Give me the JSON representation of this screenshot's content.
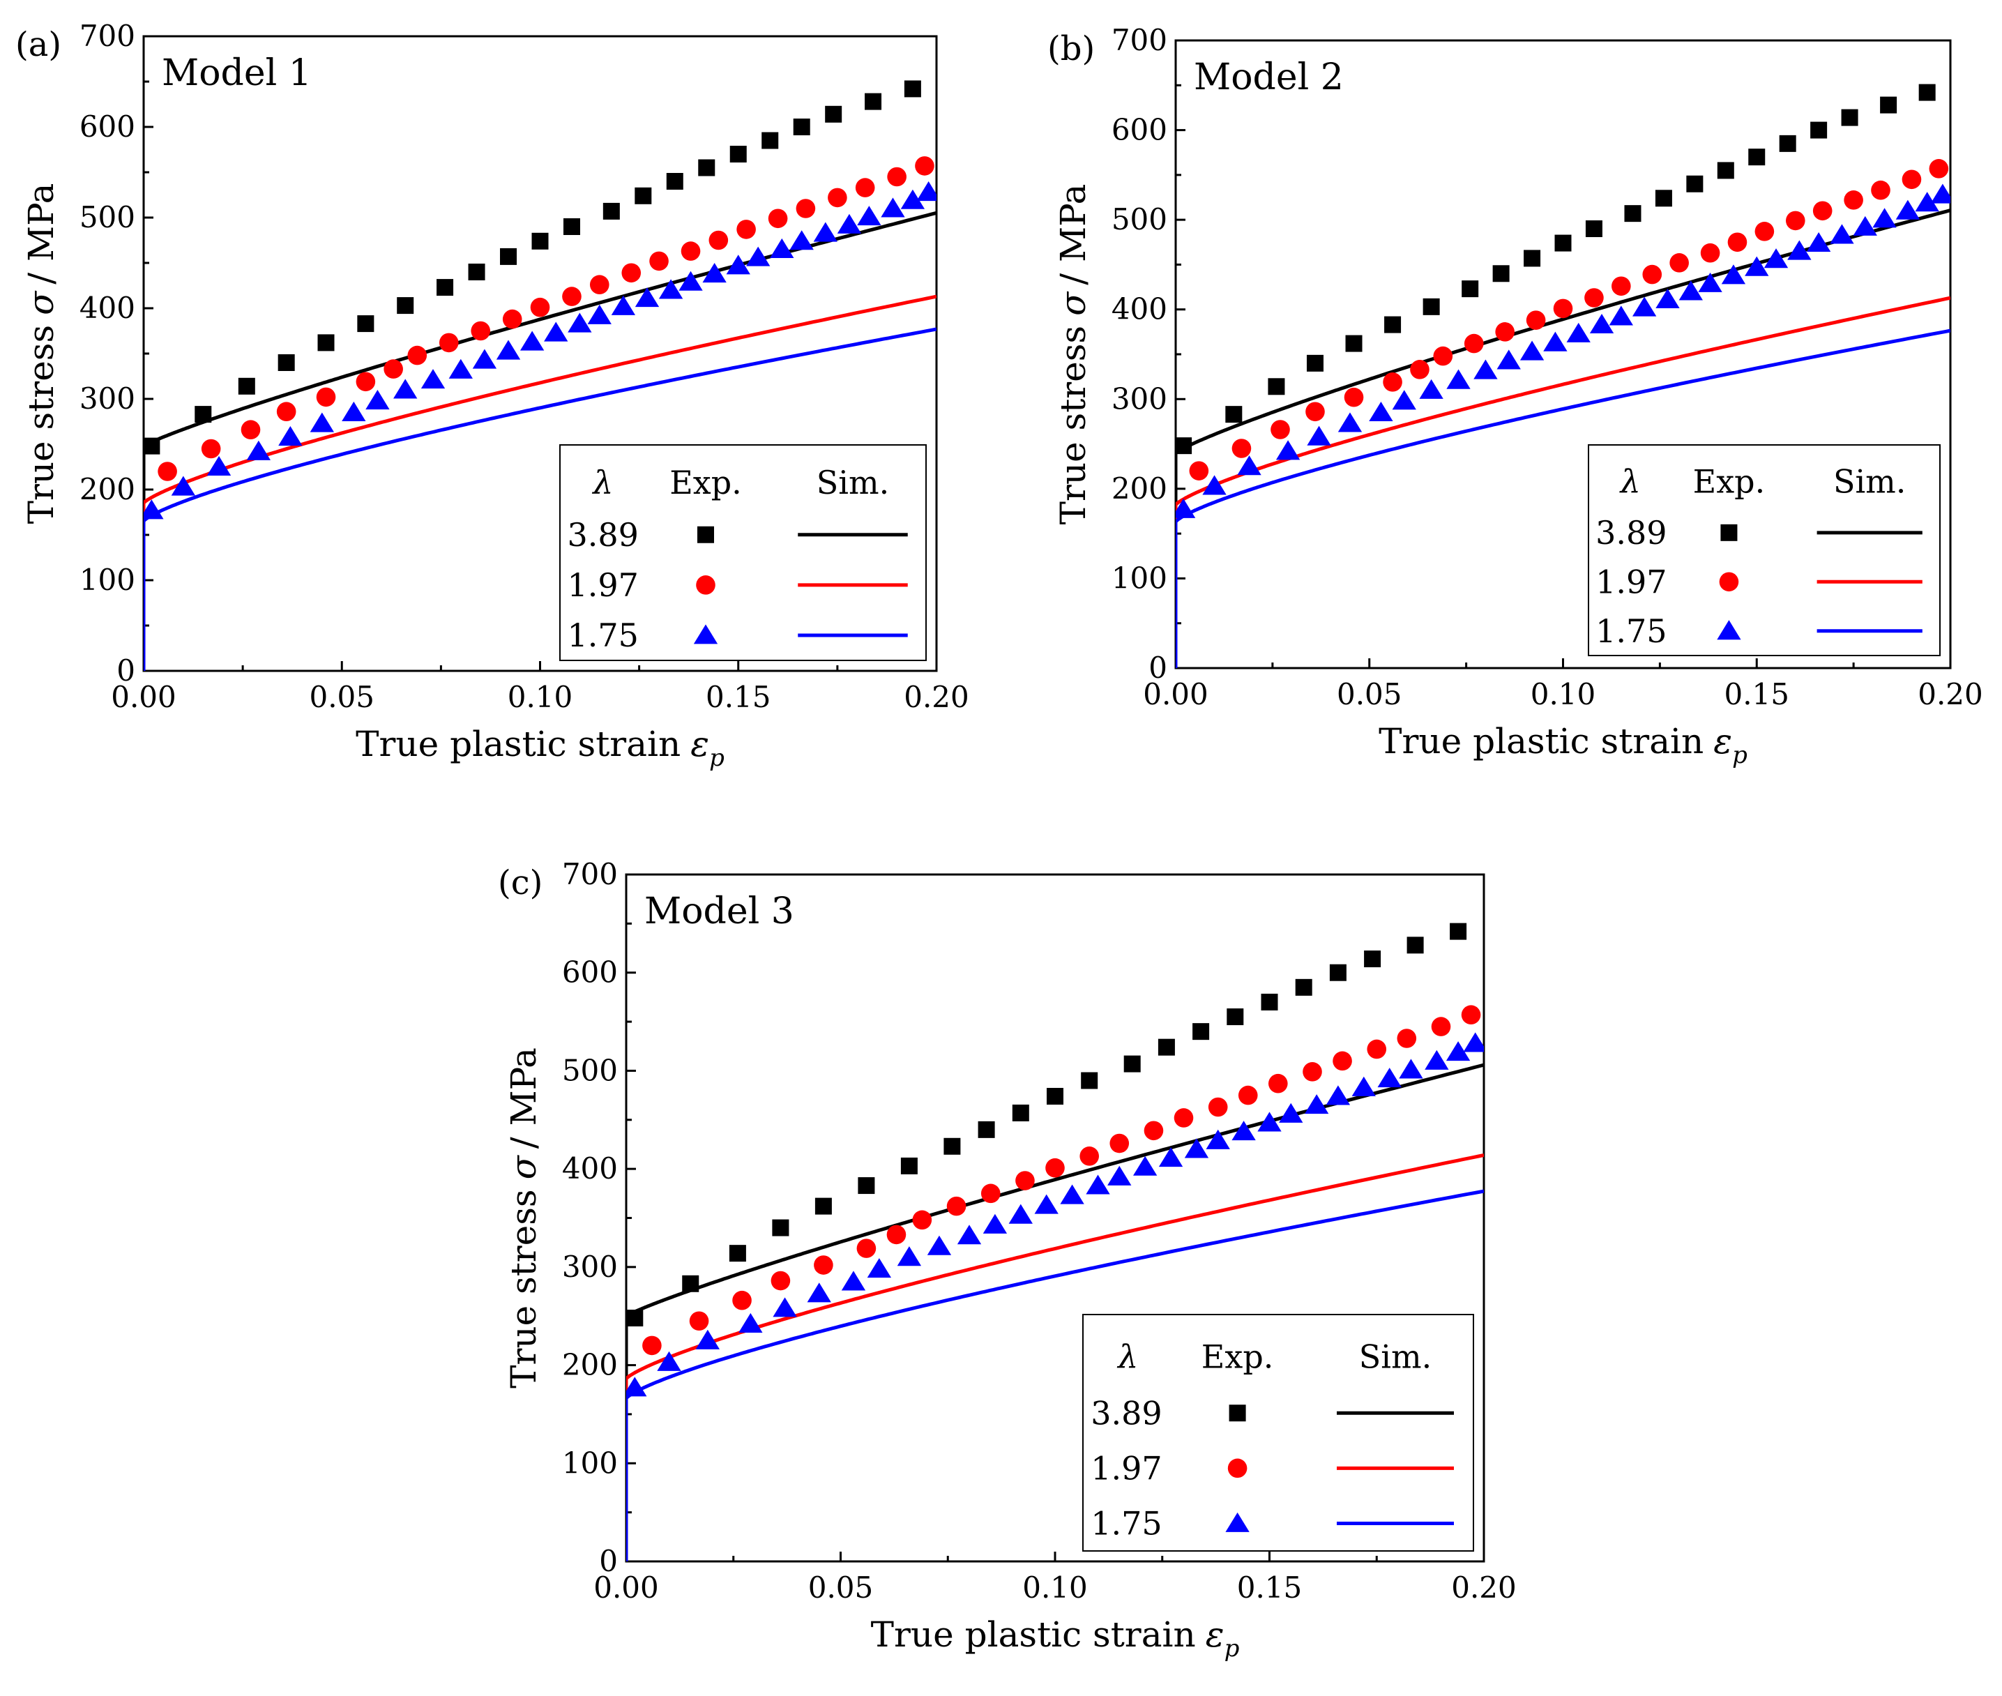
{
  "chart_data": [
    {
      "type": "line",
      "panel_label": "(a)",
      "title": "Model 1",
      "xlabel": "True plastic strain",
      "xlabel_symbol": "ε",
      "xlabel_subscript": "p",
      "ylabel": "True stress",
      "ylabel_symbol": "σ",
      "ylabel_unit": "/ MPa",
      "xlim": [
        0,
        0.2
      ],
      "ylim": [
        0,
        700
      ],
      "xticks": [
        "0.00",
        "0.05",
        "0.10",
        "0.15",
        "0.20"
      ],
      "yticks": [
        "0",
        "100",
        "200",
        "300",
        "400",
        "500",
        "600",
        "700"
      ],
      "legend": {
        "header_lambda": "λ",
        "header_exp": "Exp.",
        "header_sim": "Sim.",
        "position": "bottom-right"
      },
      "series": [
        {
          "name": "3.89",
          "color": "#000000",
          "marker": "square",
          "sim": {
            "s0": 248,
            "a": 1060,
            "b": 0.88
          },
          "exp_x": [
            0.002,
            0.015,
            0.026,
            0.036,
            0.046,
            0.056,
            0.066,
            0.076,
            0.084,
            0.092,
            0.1,
            0.108,
            0.118,
            0.126,
            0.134,
            0.142,
            0.15,
            0.158,
            0.166,
            0.174,
            0.184,
            0.194
          ],
          "exp_y": [
            248,
            283,
            314,
            340,
            362,
            383,
            403,
            423,
            440,
            457,
            474,
            490,
            507,
            524,
            540,
            555,
            570,
            585,
            600,
            614,
            628,
            642
          ]
        },
        {
          "name": "1.97",
          "color": "#ff0000",
          "marker": "circle",
          "sim": {
            "s0": 185,
            "a": 800,
            "b": 0.78
          },
          "exp_x": [
            0.006,
            0.017,
            0.027,
            0.036,
            0.046,
            0.056,
            0.063,
            0.069,
            0.077,
            0.085,
            0.093,
            0.1,
            0.108,
            0.115,
            0.123,
            0.13,
            0.138,
            0.145,
            0.152,
            0.16,
            0.167,
            0.175,
            0.182,
            0.19,
            0.197
          ],
          "exp_y": [
            220,
            245,
            266,
            286,
            302,
            319,
            333,
            348,
            362,
            375,
            388,
            401,
            413,
            426,
            439,
            452,
            463,
            475,
            487,
            499,
            510,
            522,
            533,
            545,
            557
          ]
        },
        {
          "name": "1.75",
          "color": "#0000ff",
          "marker": "triangle",
          "sim": {
            "s0": 165,
            "a": 720,
            "b": 0.76
          },
          "exp_x": [
            0.002,
            0.01,
            0.019,
            0.029,
            0.037,
            0.045,
            0.053,
            0.059,
            0.066,
            0.073,
            0.08,
            0.086,
            0.092,
            0.098,
            0.104,
            0.11,
            0.115,
            0.121,
            0.127,
            0.133,
            0.138,
            0.144,
            0.15,
            0.155,
            0.161,
            0.166,
            0.172,
            0.178,
            0.183,
            0.189,
            0.194,
            0.198
          ],
          "exp_y": [
            177,
            203,
            225,
            242,
            258,
            273,
            285,
            298,
            310,
            321,
            332,
            343,
            353,
            363,
            373,
            383,
            392,
            402,
            411,
            420,
            429,
            438,
            447,
            456,
            465,
            474,
            483,
            492,
            501,
            510,
            519,
            528
          ]
        }
      ]
    },
    {
      "type": "line",
      "panel_label": "(b)",
      "title": "Model 2",
      "xlabel": "True plastic strain",
      "xlabel_symbol": "ε",
      "xlabel_subscript": "p",
      "ylabel": "True stress",
      "ylabel_symbol": "σ",
      "ylabel_unit": "/ MPa",
      "xlim": [
        0,
        0.2
      ],
      "ylim": [
        0,
        700
      ],
      "xticks": [
        "0.00",
        "0.05",
        "0.10",
        "0.15",
        "0.20"
      ],
      "yticks": [
        "0",
        "100",
        "200",
        "300",
        "400",
        "500",
        "600",
        "700"
      ],
      "legend": {
        "header_lambda": "λ",
        "header_exp": "Exp.",
        "header_sim": "Sim.",
        "position": "bottom-right"
      },
      "series": [
        {
          "name": "3.89",
          "color": "#000000",
          "marker": "square",
          "sim": {
            "s0": 240,
            "a": 1080,
            "b": 0.86
          },
          "exp_x": [
            0.002,
            0.015,
            0.026,
            0.036,
            0.046,
            0.056,
            0.066,
            0.076,
            0.084,
            0.092,
            0.1,
            0.108,
            0.118,
            0.126,
            0.134,
            0.142,
            0.15,
            0.158,
            0.166,
            0.174,
            0.184,
            0.194
          ],
          "exp_y": [
            248,
            283,
            314,
            340,
            362,
            383,
            403,
            423,
            440,
            457,
            474,
            490,
            507,
            524,
            540,
            555,
            570,
            585,
            600,
            614,
            628,
            642
          ]
        },
        {
          "name": "1.97",
          "color": "#ff0000",
          "marker": "circle",
          "sim": {
            "s0": 182,
            "a": 810,
            "b": 0.78
          },
          "exp_x": [
            0.006,
            0.017,
            0.027,
            0.036,
            0.046,
            0.056,
            0.063,
            0.069,
            0.077,
            0.085,
            0.093,
            0.1,
            0.108,
            0.115,
            0.123,
            0.13,
            0.138,
            0.145,
            0.152,
            0.16,
            0.167,
            0.175,
            0.182,
            0.19,
            0.197
          ],
          "exp_y": [
            220,
            245,
            266,
            286,
            302,
            319,
            333,
            348,
            362,
            375,
            388,
            401,
            413,
            426,
            439,
            452,
            463,
            475,
            487,
            499,
            510,
            522,
            533,
            545,
            557
          ]
        },
        {
          "name": "1.75",
          "color": "#0000ff",
          "marker": "triangle",
          "sim": {
            "s0": 163,
            "a": 725,
            "b": 0.76
          },
          "exp_x": [
            0.002,
            0.01,
            0.019,
            0.029,
            0.037,
            0.045,
            0.053,
            0.059,
            0.066,
            0.073,
            0.08,
            0.086,
            0.092,
            0.098,
            0.104,
            0.11,
            0.115,
            0.121,
            0.127,
            0.133,
            0.138,
            0.144,
            0.15,
            0.155,
            0.161,
            0.166,
            0.172,
            0.178,
            0.183,
            0.189,
            0.194,
            0.198
          ],
          "exp_y": [
            177,
            203,
            225,
            242,
            258,
            273,
            285,
            298,
            310,
            321,
            332,
            343,
            353,
            363,
            373,
            383,
            392,
            402,
            411,
            420,
            429,
            438,
            447,
            456,
            465,
            474,
            483,
            492,
            501,
            510,
            519,
            528
          ]
        }
      ]
    },
    {
      "type": "line",
      "panel_label": "(c)",
      "title": "Model 3",
      "xlabel": "True plastic strain",
      "xlabel_symbol": "ε",
      "xlabel_subscript": "p",
      "ylabel": "True stress",
      "ylabel_symbol": "σ",
      "ylabel_unit": "/ MPa",
      "xlim": [
        0,
        0.2
      ],
      "ylim": [
        0,
        700
      ],
      "xticks": [
        "0.00",
        "0.05",
        "0.10",
        "0.15",
        "0.20"
      ],
      "yticks": [
        "0",
        "100",
        "200",
        "300",
        "400",
        "500",
        "600",
        "700"
      ],
      "legend": {
        "header_lambda": "λ",
        "header_exp": "Exp.",
        "header_sim": "Sim.",
        "position": "bottom-right"
      },
      "series": [
        {
          "name": "3.89",
          "color": "#000000",
          "marker": "square",
          "sim": {
            "s0": 250,
            "a": 1055,
            "b": 0.88
          },
          "exp_x": [
            0.002,
            0.015,
            0.026,
            0.036,
            0.046,
            0.056,
            0.066,
            0.076,
            0.084,
            0.092,
            0.1,
            0.108,
            0.118,
            0.126,
            0.134,
            0.142,
            0.15,
            0.158,
            0.166,
            0.174,
            0.184,
            0.194
          ],
          "exp_y": [
            248,
            283,
            314,
            340,
            362,
            383,
            403,
            423,
            440,
            457,
            474,
            490,
            507,
            524,
            540,
            555,
            570,
            585,
            600,
            614,
            628,
            642
          ]
        },
        {
          "name": "1.97",
          "color": "#ff0000",
          "marker": "circle",
          "sim": {
            "s0": 186,
            "a": 800,
            "b": 0.78
          },
          "exp_x": [
            0.006,
            0.017,
            0.027,
            0.036,
            0.046,
            0.056,
            0.063,
            0.069,
            0.077,
            0.085,
            0.093,
            0.1,
            0.108,
            0.115,
            0.123,
            0.13,
            0.138,
            0.145,
            0.152,
            0.16,
            0.167,
            0.175,
            0.182,
            0.19,
            0.197
          ],
          "exp_y": [
            220,
            245,
            266,
            286,
            302,
            319,
            333,
            348,
            362,
            375,
            388,
            401,
            413,
            426,
            439,
            452,
            463,
            475,
            487,
            499,
            510,
            522,
            533,
            545,
            557
          ]
        },
        {
          "name": "1.75",
          "color": "#0000ff",
          "marker": "triangle",
          "sim": {
            "s0": 166,
            "a": 718,
            "b": 0.76
          },
          "exp_x": [
            0.002,
            0.01,
            0.019,
            0.029,
            0.037,
            0.045,
            0.053,
            0.059,
            0.066,
            0.073,
            0.08,
            0.086,
            0.092,
            0.098,
            0.104,
            0.11,
            0.115,
            0.121,
            0.127,
            0.133,
            0.138,
            0.144,
            0.15,
            0.155,
            0.161,
            0.166,
            0.172,
            0.178,
            0.183,
            0.189,
            0.194,
            0.198
          ],
          "exp_y": [
            177,
            203,
            225,
            242,
            258,
            273,
            285,
            298,
            310,
            321,
            332,
            343,
            353,
            363,
            373,
            383,
            392,
            402,
            411,
            420,
            429,
            438,
            447,
            456,
            465,
            474,
            483,
            492,
            501,
            510,
            519,
            528
          ]
        }
      ]
    }
  ]
}
